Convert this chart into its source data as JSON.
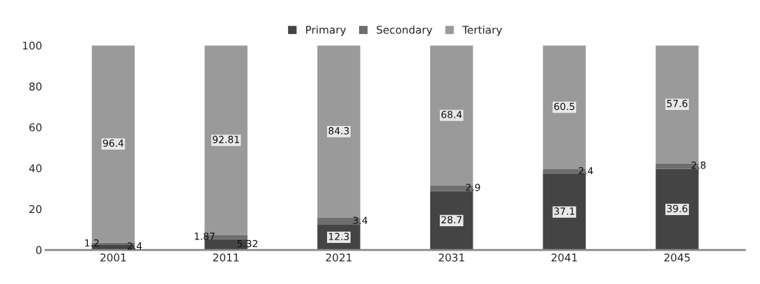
{
  "chart_data": {
    "type": "bar",
    "stacked": true,
    "categories": [
      "2001",
      "2011",
      "2021",
      "2031",
      "2041",
      "2045"
    ],
    "series": [
      {
        "name": "Primary",
        "color": "#444444",
        "values": [
          2.4,
          5.32,
          12.3,
          28.7,
          37.1,
          39.6
        ]
      },
      {
        "name": "Secondary",
        "color": "#6e6e6e",
        "values": [
          1.2,
          1.87,
          3.4,
          2.9,
          2.4,
          2.8
        ]
      },
      {
        "name": "Tertiary",
        "color": "#9a9a9a",
        "values": [
          96.4,
          92.81,
          84.3,
          68.4,
          60.5,
          57.6
        ]
      }
    ],
    "ylim": [
      0,
      100
    ],
    "yticks": [
      0,
      20,
      40,
      60,
      80,
      100
    ],
    "grid": false,
    "legend": "top",
    "data_labels": true
  }
}
